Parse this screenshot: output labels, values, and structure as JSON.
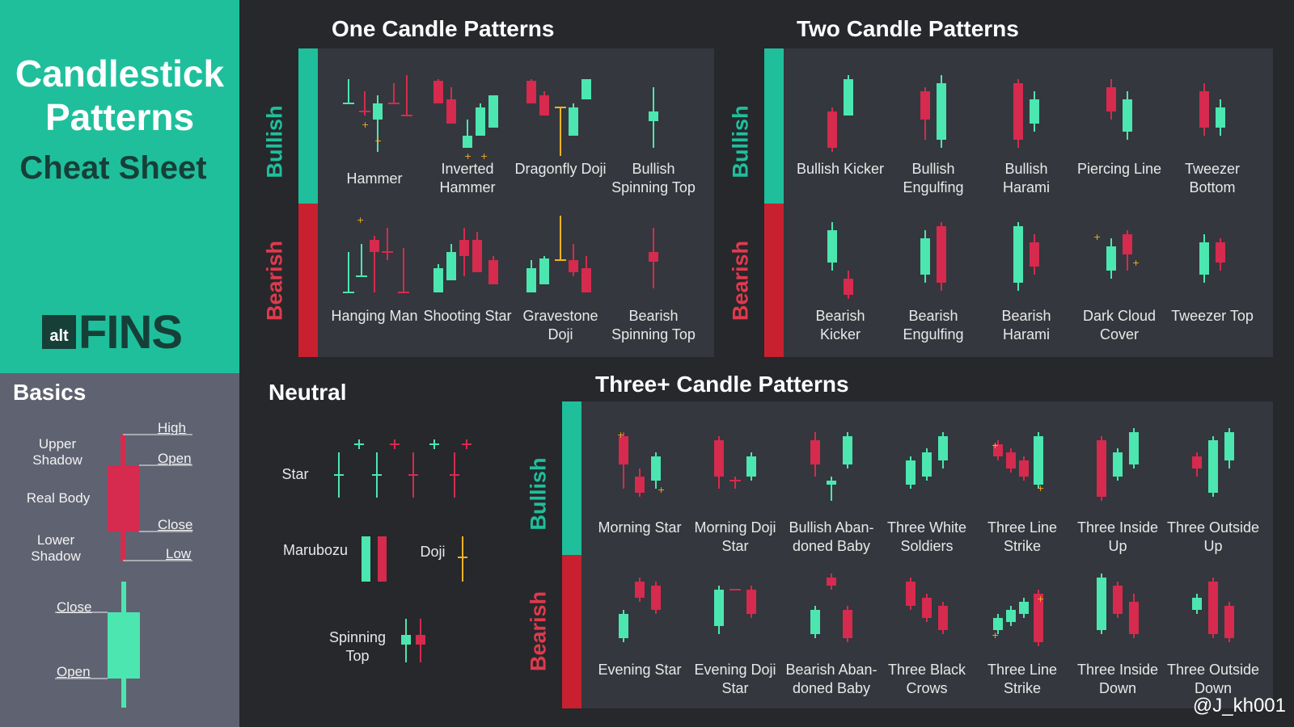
{
  "brand": {
    "title_line1": "Candlestick",
    "title_line2": "Patterns",
    "subtitle": "Cheat Sheet",
    "logo_small": "alt",
    "logo_big": "FINS"
  },
  "basics": {
    "title": "Basics",
    "upper_shadow": "Upper Shadow",
    "real_body": "Real Body",
    "lower_shadow": "Lower Shadow",
    "high": "High",
    "open": "Open",
    "close": "Close",
    "low": "Low",
    "close2": "Close",
    "open2": "Open"
  },
  "sections": {
    "one": "One Candle Patterns",
    "two": "Two Candle Patterns",
    "neutral": "Neutral",
    "three": "Three+ Candle Patterns"
  },
  "side_labels": {
    "bullish": "Bullish",
    "bearish": "Bearish"
  },
  "one_candle": {
    "bullish": [
      "Hammer",
      "Inverted Hammer",
      "Dragonfly Doji",
      "Bullish Spinning Top"
    ],
    "bearish": [
      "Hanging Man",
      "Shooting Star",
      "Gravestone Doji",
      "Bearish Spinning Top"
    ]
  },
  "two_candle": {
    "bullish": [
      "Bullish Kicker",
      "Bullish Engulfing",
      "Bullish Harami",
      "Piercing Line",
      "Tweezer Bottom"
    ],
    "bearish": [
      "Bearish Kicker",
      "Bearish Engulfing",
      "Bearish Harami",
      "Dark Cloud Cover",
      "Tweezer Top"
    ]
  },
  "neutral": {
    "star": "Star",
    "marubozu": "Marubozu",
    "doji": "Doji",
    "spinning_top": "Spinning Top"
  },
  "three_candle": {
    "bullish": [
      "Morning Star",
      "Morning Doji Star",
      "Bullish Aban- doned Baby",
      "Three White Soldiers",
      "Three Line Strike",
      "Three Inside Up",
      "Three Outside Up"
    ],
    "bearish": [
      "Evening Star",
      "Evening Doji Star",
      "Bearish Aban- doned Baby",
      "Three Black Crows",
      "Three Line Strike",
      "Three Inside Down",
      "Three Outside Down"
    ]
  },
  "watermark": "@J_kh001",
  "colors": {
    "bull": "#4ce6b0",
    "bear": "#d62a4e",
    "accent": "#1fbf9c",
    "doji": "#f0b323",
    "panel": "#34373d"
  }
}
